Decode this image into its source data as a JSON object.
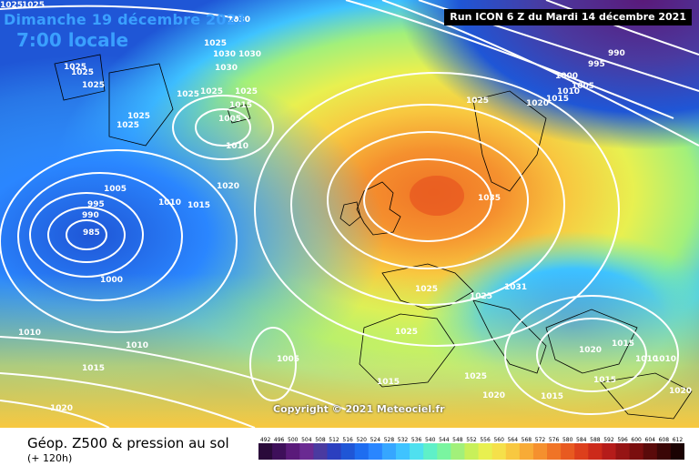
{
  "header": {
    "date": "Dimanche 19 décembre 2021",
    "time": "7:00 locale",
    "run": "Run ICON 6 Z du Mardi 14 décembre 2021"
  },
  "copyright": "Copyright © 2021 Meteociel.fr",
  "footer": {
    "title": "Géop. Z500 & pression au sol",
    "subtitle": "(+ 120h)"
  },
  "legend": {
    "ticks": [
      "492",
      "496",
      "500",
      "504",
      "508",
      "512",
      "516",
      "520",
      "524",
      "528",
      "532",
      "536",
      "540",
      "544",
      "548",
      "552",
      "556",
      "560",
      "564",
      "568",
      "572",
      "576",
      "580",
      "584",
      "588",
      "592",
      "596",
      "600",
      "604",
      "608",
      "612"
    ],
    "colors": [
      "#2a0a3a",
      "#3e0f5a",
      "#5a1a7a",
      "#6a2a92",
      "#4a3aa0",
      "#2b3fbf",
      "#1f56d6",
      "#1e6df0",
      "#2a86ff",
      "#36a6ff",
      "#3fc3ff",
      "#4fe0ef",
      "#5ff0c8",
      "#7af5a0",
      "#a2f07a",
      "#c8f05a",
      "#e8f050",
      "#f5e04a",
      "#f8c840",
      "#f8ab36",
      "#f5902e",
      "#f07426",
      "#e85a20",
      "#dd3f1c",
      "#cc2a1a",
      "#b51c1a",
      "#961414",
      "#7a0e0e",
      "#5a0a0a",
      "#3a0606",
      "#1a0202"
    ]
  },
  "isobar_labels": [
    "1025",
    "1030",
    "1025",
    "1025",
    "1025",
    "1030",
    "1030",
    "1025",
    "1030",
    "1025",
    "1025",
    "1025",
    "1005",
    "1010",
    "1015",
    "1025",
    "1025",
    "1020",
    "1015",
    "1010",
    "1005",
    "995",
    "990",
    "1000",
    "995",
    "990",
    "985",
    "1005",
    "1010",
    "1015",
    "1020",
    "1000",
    "1010",
    "1010",
    "1015",
    "1020",
    "1005",
    "1035",
    "1025",
    "1025",
    "1031",
    "1025",
    "1015",
    "1025",
    "1020",
    "1015",
    "1020",
    "1015",
    "1010",
    "1010",
    "1015",
    "1020",
    "1025",
    "1025"
  ]
}
